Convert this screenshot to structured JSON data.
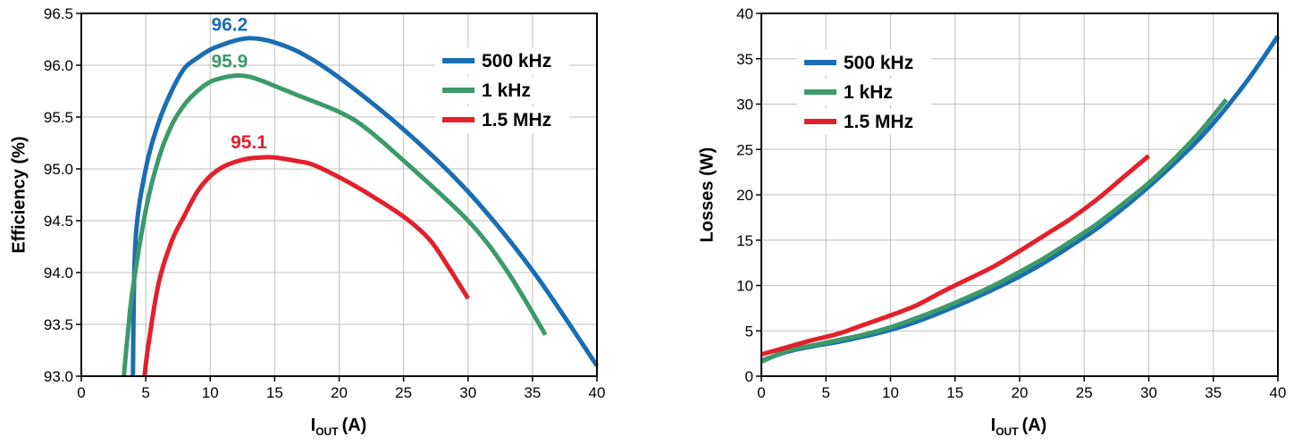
{
  "chart_data": [
    {
      "type": "line",
      "ylabel": "Efficiency (%)",
      "xlabel_main": "I",
      "xlabel_sub": "OUT",
      "xlabel_unit": "(A)",
      "xlim": [
        0,
        40
      ],
      "ylim": [
        93.0,
        96.5
      ],
      "x_ticks": [
        0,
        5,
        10,
        15,
        20,
        25,
        30,
        35,
        40
      ],
      "x_tick_labels": [
        "0",
        "5",
        "10",
        "15",
        "20",
        "25",
        "30",
        "35",
        "40"
      ],
      "y_ticks": [
        93.0,
        93.5,
        94.0,
        94.5,
        95.0,
        95.5,
        96.0,
        96.5
      ],
      "y_tick_labels": [
        "93.0",
        "93.5",
        "94.0",
        "94.5",
        "95.0",
        "95.5",
        "96.0",
        "96.5"
      ],
      "grid": true,
      "legend_position": "top-right",
      "series": [
        {
          "name": "500 kHz",
          "color": "#1a6db3",
          "x": [
            4.0,
            4.2,
            5.0,
            6.0,
            7.0,
            8.0,
            9.0,
            10.0,
            11.0,
            12.0,
            13.0,
            14.0,
            15.0,
            17.0,
            20.0,
            25.0,
            30.0,
            35.0,
            40.0
          ],
          "y": [
            93.0,
            94.3,
            95.0,
            95.45,
            95.75,
            95.97,
            96.07,
            96.15,
            96.2,
            96.24,
            96.26,
            96.25,
            96.22,
            96.12,
            95.88,
            95.38,
            94.78,
            94.02,
            93.1
          ]
        },
        {
          "name": "1 kHz",
          "color": "#3c9a6a",
          "x": [
            3.3,
            3.6,
            4.0,
            5.0,
            6.0,
            7.0,
            8.0,
            9.0,
            10.0,
            11.0,
            12.0,
            13.0,
            14.0,
            15.0,
            17.0,
            20.0,
            22.0,
            25.0,
            30.0,
            33.0,
            36.0
          ],
          "y": [
            93.0,
            93.4,
            93.85,
            94.6,
            95.1,
            95.42,
            95.62,
            95.75,
            95.84,
            95.88,
            95.9,
            95.89,
            95.85,
            95.8,
            95.7,
            95.55,
            95.4,
            95.08,
            94.5,
            94.02,
            93.4
          ]
        },
        {
          "name": "1.5 MHz",
          "color": "#e3202b",
          "x": [
            4.9,
            5.2,
            6.0,
            7.0,
            8.0,
            9.0,
            10.0,
            11.0,
            12.0,
            13.0,
            14.0,
            15.0,
            17.0,
            18.0,
            20.0,
            22.0,
            25.0,
            27.0,
            28.5,
            30.0
          ],
          "y": [
            93.0,
            93.3,
            93.9,
            94.3,
            94.55,
            94.78,
            94.93,
            95.02,
            95.07,
            95.1,
            95.11,
            95.11,
            95.07,
            95.04,
            94.92,
            94.78,
            94.54,
            94.32,
            94.05,
            93.75
          ]
        }
      ],
      "annotations": [
        {
          "text": "96.2",
          "x": 11.5,
          "y": 96.33,
          "color": "#1a6db3"
        },
        {
          "text": "95.9",
          "x": 11.5,
          "y": 95.98,
          "color": "#3c9a6a"
        },
        {
          "text": "95.1",
          "x": 13.0,
          "y": 95.2,
          "color": "#e3202b"
        }
      ]
    },
    {
      "type": "line",
      "ylabel": "Losses (W)",
      "xlabel_main": "I",
      "xlabel_sub": "OUT",
      "xlabel_unit": "(A)",
      "xlim": [
        0,
        40
      ],
      "ylim": [
        0,
        40
      ],
      "x_ticks": [
        0,
        5,
        10,
        15,
        20,
        25,
        30,
        35,
        40
      ],
      "x_tick_labels": [
        "0",
        "5",
        "10",
        "15",
        "20",
        "25",
        "30",
        "35",
        "40"
      ],
      "y_ticks": [
        0,
        5,
        10,
        15,
        20,
        25,
        30,
        35,
        40
      ],
      "y_tick_labels": [
        "0",
        "5",
        "10",
        "15",
        "20",
        "25",
        "30",
        "35",
        "40"
      ],
      "grid": true,
      "legend_position": "top-left",
      "series": [
        {
          "name": "500 kHz",
          "color": "#1a6db3",
          "x": [
            0,
            2,
            4,
            6,
            8,
            10,
            12,
            14,
            16,
            18,
            20,
            22,
            24,
            26,
            28,
            30,
            32,
            34,
            36,
            38,
            40
          ],
          "y": [
            1.7,
            2.7,
            3.3,
            3.8,
            4.4,
            5.1,
            6.0,
            7.1,
            8.3,
            9.6,
            11.0,
            12.6,
            14.4,
            16.3,
            18.5,
            20.9,
            23.5,
            26.3,
            29.6,
            33.3,
            37.5
          ]
        },
        {
          "name": "1 kHz",
          "color": "#3c9a6a",
          "x": [
            0,
            2,
            4,
            6,
            8,
            10,
            12,
            14,
            16,
            18,
            20,
            22,
            24,
            26,
            28,
            30,
            32,
            34,
            36
          ],
          "y": [
            1.6,
            2.8,
            3.4,
            4.0,
            4.6,
            5.4,
            6.4,
            7.5,
            8.7,
            10.0,
            11.5,
            13.1,
            14.9,
            16.8,
            19.0,
            21.3,
            24.0,
            27.0,
            30.5
          ]
        },
        {
          "name": "1.5 MHz",
          "color": "#e3202b",
          "x": [
            0,
            2,
            4,
            6,
            8,
            10,
            12,
            14,
            16,
            18,
            20,
            22,
            24,
            26,
            28,
            30
          ],
          "y": [
            2.4,
            3.2,
            4.0,
            4.7,
            5.7,
            6.7,
            7.8,
            9.3,
            10.7,
            12.1,
            13.8,
            15.6,
            17.4,
            19.5,
            21.9,
            24.3
          ]
        }
      ],
      "annotations": []
    }
  ]
}
